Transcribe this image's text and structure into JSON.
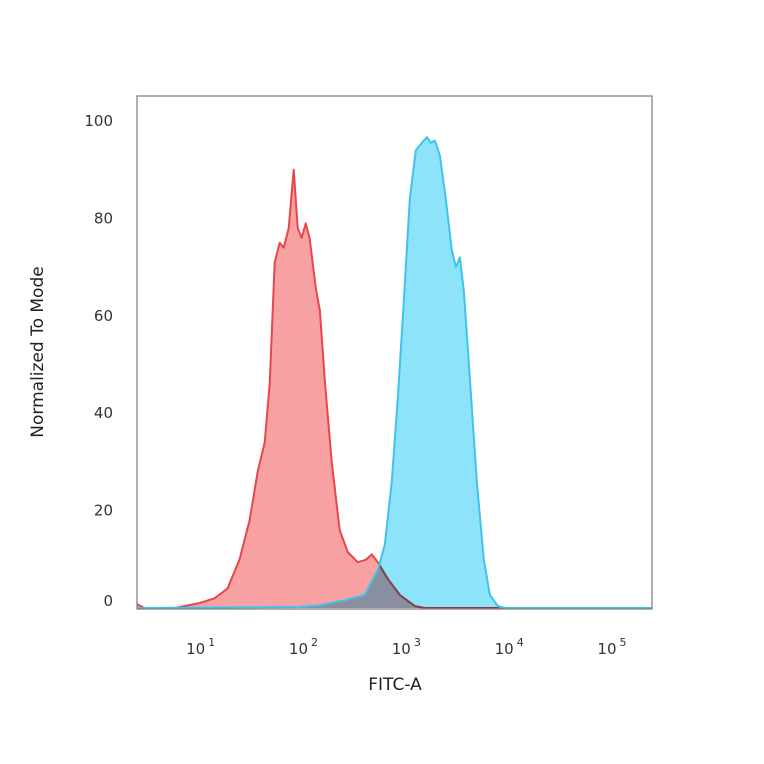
{
  "chart_data": {
    "type": "area",
    "title": "",
    "xlabel": "FITC-A",
    "ylabel": "Normalized To Mode",
    "x_scale": "log",
    "xlim": [
      2.2,
      224000
    ],
    "ylim": [
      0,
      105
    ],
    "x_ticks": [
      {
        "base": "10",
        "exp": "1",
        "value": 10
      },
      {
        "base": "10",
        "exp": "2",
        "value": 100
      },
      {
        "base": "10",
        "exp": "3",
        "value": 1000
      },
      {
        "base": "10",
        "exp": "4",
        "value": 10000
      },
      {
        "base": "10",
        "exp": "5",
        "value": 100000
      }
    ],
    "y_ticks": [
      0,
      20,
      40,
      60,
      80,
      100
    ],
    "grid": false,
    "legend": "none",
    "series": [
      {
        "color_line": "#e8464a",
        "color_fill": "#f7a1a3",
        "x": [
          2.2,
          2.6,
          5.1,
          8.9,
          12.5,
          16.7,
          21.9,
          27.4,
          32.8,
          38.4,
          42.9,
          48,
          53.7,
          58.7,
          65.7,
          73.5,
          80.4,
          87.9,
          96.2,
          105,
          120,
          132,
          147,
          172,
          206,
          246,
          308,
          369,
          422,
          483,
          604,
          791,
          1107,
          1384,
          224000
        ],
        "y": [
          0.8,
          0,
          0,
          1,
          2,
          4,
          10,
          18,
          28,
          34,
          46,
          71,
          75,
          74,
          78,
          90,
          78,
          76,
          79,
          76,
          66,
          61,
          47,
          30,
          16,
          11.5,
          9.4,
          9.9,
          11,
          9.4,
          6,
          2.7,
          0.4,
          0,
          0
        ]
      },
      {
        "color_line": "#3fc3eb",
        "color_fill": "#8de3f9",
        "x": [
          2.2,
          84,
          132,
          231,
          361,
          483,
          565,
          661,
          756,
          865,
          989,
          1132,
          1295,
          1449,
          1585,
          1730,
          1936,
          2215,
          2535,
          2773,
          3034,
          3319,
          3795,
          4437,
          5190,
          5940,
          7110,
          8318,
          224000
        ],
        "y": [
          0,
          0.2,
          0.6,
          1.6,
          2.7,
          7.8,
          13,
          26,
          43,
          63,
          84,
          94,
          95.5,
          96.7,
          95.5,
          96,
          93,
          84,
          73.5,
          70,
          72,
          65,
          47,
          26,
          10,
          2.7,
          0.4,
          0,
          0
        ]
      }
    ]
  }
}
